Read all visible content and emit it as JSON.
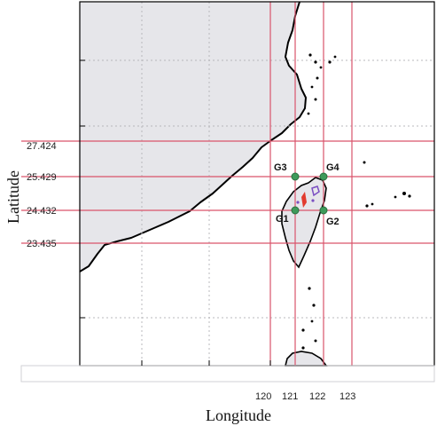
{
  "map": {
    "axis_titles": {
      "x": "Longitude",
      "y": "Latitude"
    },
    "lat_ticks": [
      "27.424",
      "25.429",
      "24.432",
      "23.435"
    ],
    "lon_ticks": [
      "120",
      "121",
      "122",
      "123"
    ],
    "grid_points": [
      {
        "label": "G1"
      },
      {
        "label": "G2"
      },
      {
        "label": "G3"
      },
      {
        "label": "G4"
      }
    ],
    "colors": {
      "land": "#e6e6ea",
      "sea": "#ffffff",
      "grid_lines": "#d9536b",
      "coastline": "#000000",
      "grid_point": "#3e9a5a",
      "marker_red": "#e23b2e",
      "marker_purple": "#7a4fc2"
    }
  }
}
